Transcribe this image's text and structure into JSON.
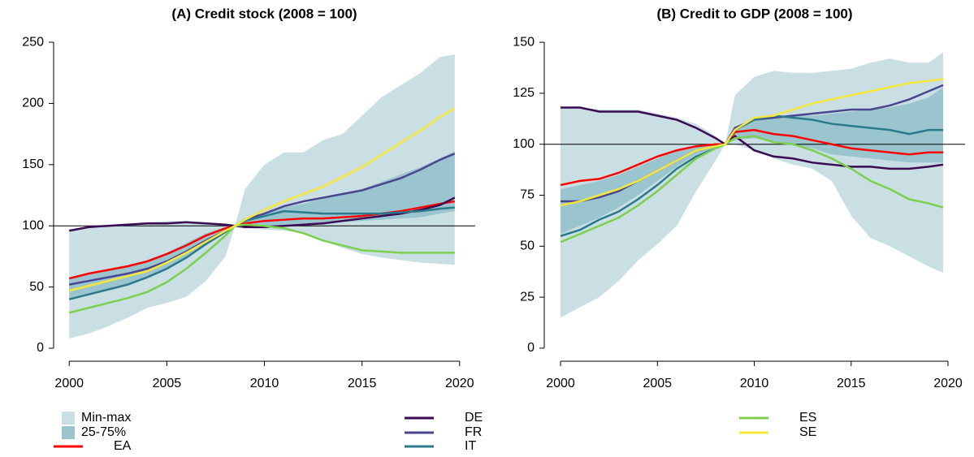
{
  "chart_data": [
    {
      "type": "line",
      "title": "(A) Credit stock (2008 = 100)",
      "x": [
        2000,
        2001,
        2002,
        2003,
        2004,
        2005,
        2006,
        2007,
        2008,
        2008.5,
        2009,
        2010,
        2011,
        2012,
        2013,
        2014,
        2015,
        2016,
        2017,
        2018,
        2019,
        2019.75
      ],
      "xlim": [
        1999.2,
        2020.8
      ],
      "xticks": [
        2000,
        2005,
        2010,
        2015,
        2020
      ],
      "ylim": [
        -10.6,
        261.3
      ],
      "yticks": [
        0,
        50,
        100,
        150,
        200,
        250
      ],
      "hline": 100,
      "series": [
        {
          "name": "Min-max",
          "color": "#c9dfe3",
          "high": [
            97,
            100,
            101,
            102,
            103,
            104,
            104,
            103,
            101,
            100,
            130,
            150,
            160,
            160,
            170,
            175,
            190,
            205,
            215,
            225,
            238,
            240
          ],
          "low": [
            8,
            12,
            18,
            25,
            33,
            37,
            42,
            55,
            75,
            100,
            98,
            97,
            96,
            94,
            88,
            82,
            77,
            74,
            72,
            70,
            69,
            68
          ]
        },
        {
          "name": "25-75%",
          "color": "#9ac4ce",
          "high": [
            58,
            61,
            64,
            68,
            72,
            78,
            86,
            94,
            99,
            100,
            105,
            110,
            115,
            118,
            122,
            126,
            130,
            136,
            142,
            148,
            155,
            161
          ],
          "low": [
            40,
            44,
            48,
            52,
            57,
            64,
            74,
            85,
            95,
            100,
            100,
            100,
            101,
            102,
            102,
            103,
            104,
            105,
            106,
            107,
            110,
            112
          ]
        },
        {
          "name": "EA",
          "color": "#ff0000",
          "values": [
            57,
            61,
            64,
            67,
            71,
            77,
            84,
            92,
            98,
            100,
            102,
            104,
            105,
            106,
            106,
            107,
            108,
            110,
            112,
            115,
            118,
            120
          ]
        },
        {
          "name": "DE",
          "color": "#3b0a52",
          "values": [
            96,
            99,
            100,
            101,
            102,
            102,
            103,
            102,
            101,
            100,
            99,
            99,
            100,
            101,
            102,
            104,
            106,
            108,
            110,
            113,
            117,
            123
          ]
        },
        {
          "name": "FR",
          "color": "#4a4590",
          "values": [
            52,
            55,
            58,
            61,
            65,
            71,
            79,
            88,
            96,
            100,
            105,
            110,
            116,
            120,
            123,
            126,
            129,
            134,
            139,
            146,
            154,
            159
          ]
        },
        {
          "name": "IT",
          "color": "#2a7a8c",
          "values": [
            40,
            44,
            48,
            52,
            58,
            65,
            74,
            85,
            95,
            100,
            104,
            108,
            112,
            111,
            110,
            110,
            110,
            110,
            111,
            112,
            114,
            115
          ]
        },
        {
          "name": "ES",
          "color": "#7ccf4f",
          "values": [
            29,
            33,
            37,
            41,
            46,
            54,
            65,
            78,
            92,
            100,
            101,
            100,
            98,
            94,
            88,
            84,
            80,
            79,
            78,
            78,
            78,
            78
          ]
        },
        {
          "name": "SE",
          "color": "#f5e83a",
          "values": [
            47,
            51,
            55,
            59,
            63,
            70,
            78,
            87,
            96,
            100,
            105,
            113,
            120,
            126,
            132,
            140,
            148,
            158,
            168,
            178,
            189,
            196
          ]
        }
      ]
    },
    {
      "type": "line",
      "title": "(B) Credit to GDP (2008 = 100)",
      "x": [
        2000,
        2001,
        2002,
        2003,
        2004,
        2005,
        2006,
        2007,
        2008,
        2008.5,
        2009,
        2010,
        2011,
        2012,
        2013,
        2014,
        2015,
        2016,
        2017,
        2018,
        2019,
        2019.75
      ],
      "xlim": [
        1999.16,
        2020.88
      ],
      "xticks": [
        2000,
        2005,
        2010,
        2015,
        2020
      ],
      "ylim": [
        -6.4,
        156.8
      ],
      "yticks": [
        0,
        25,
        50,
        75,
        100,
        125,
        150
      ],
      "hline": 100,
      "series": [
        {
          "color": "#c9dfe3",
          "high": [
            118,
            118,
            117,
            117,
            117,
            115,
            113,
            110,
            104,
            100,
            124,
            133,
            136,
            135,
            135,
            136,
            137,
            140,
            142,
            140,
            140,
            145
          ],
          "low": [
            15,
            20,
            25,
            33,
            43,
            51,
            60,
            77,
            92,
            100,
            100,
            97,
            93,
            90,
            88,
            82,
            65,
            54,
            50,
            45,
            40,
            37
          ]
        },
        {
          "color": "#9ac4ce",
          "high": [
            78,
            80,
            82,
            85,
            89,
            93,
            97,
            99,
            100,
            100,
            108,
            112,
            113,
            114,
            114,
            115,
            116,
            117,
            118,
            120,
            123,
            128
          ],
          "low": [
            56,
            60,
            64,
            69,
            75,
            82,
            89,
            95,
            98,
            100,
            102,
            103,
            101,
            100,
            98,
            95,
            94,
            93,
            92,
            91,
            91,
            91
          ]
        },
        {
          "color": "#ff0000",
          "values": [
            80,
            82,
            83,
            86,
            90,
            94,
            97,
            99,
            100,
            100,
            106,
            107,
            105,
            104,
            102,
            100,
            98,
            97,
            96,
            95,
            96,
            96
          ]
        },
        {
          "color": "#3b0a52",
          "values": [
            118,
            118,
            116,
            116,
            116,
            114,
            112,
            108,
            103,
            100,
            104,
            97,
            94,
            93,
            91,
            90,
            89,
            89,
            88,
            88,
            89,
            90
          ]
        },
        {
          "color": "#4a4590",
          "values": [
            72,
            72,
            74,
            77,
            82,
            87,
            92,
            97,
            99,
            100,
            108,
            112,
            113,
            114,
            115,
            116,
            117,
            117,
            119,
            122,
            126,
            129
          ]
        },
        {
          "color": "#2a7a8c",
          "values": [
            55,
            58,
            63,
            67,
            73,
            80,
            88,
            94,
            98,
            100,
            107,
            112,
            114,
            113,
            112,
            110,
            109,
            108,
            107,
            105,
            107,
            107
          ]
        },
        {
          "color": "#7ccf4f",
          "values": [
            52,
            56,
            60,
            64,
            70,
            77,
            85,
            93,
            98,
            100,
            103,
            104,
            101,
            100,
            97,
            93,
            88,
            82,
            78,
            73,
            71,
            69
          ]
        },
        {
          "color": "#f5e83a",
          "values": [
            70,
            72,
            75,
            78,
            82,
            87,
            92,
            97,
            99,
            100,
            107,
            113,
            114,
            117,
            120,
            122,
            124,
            126,
            128,
            130,
            131,
            132
          ]
        }
      ]
    }
  ]
}
